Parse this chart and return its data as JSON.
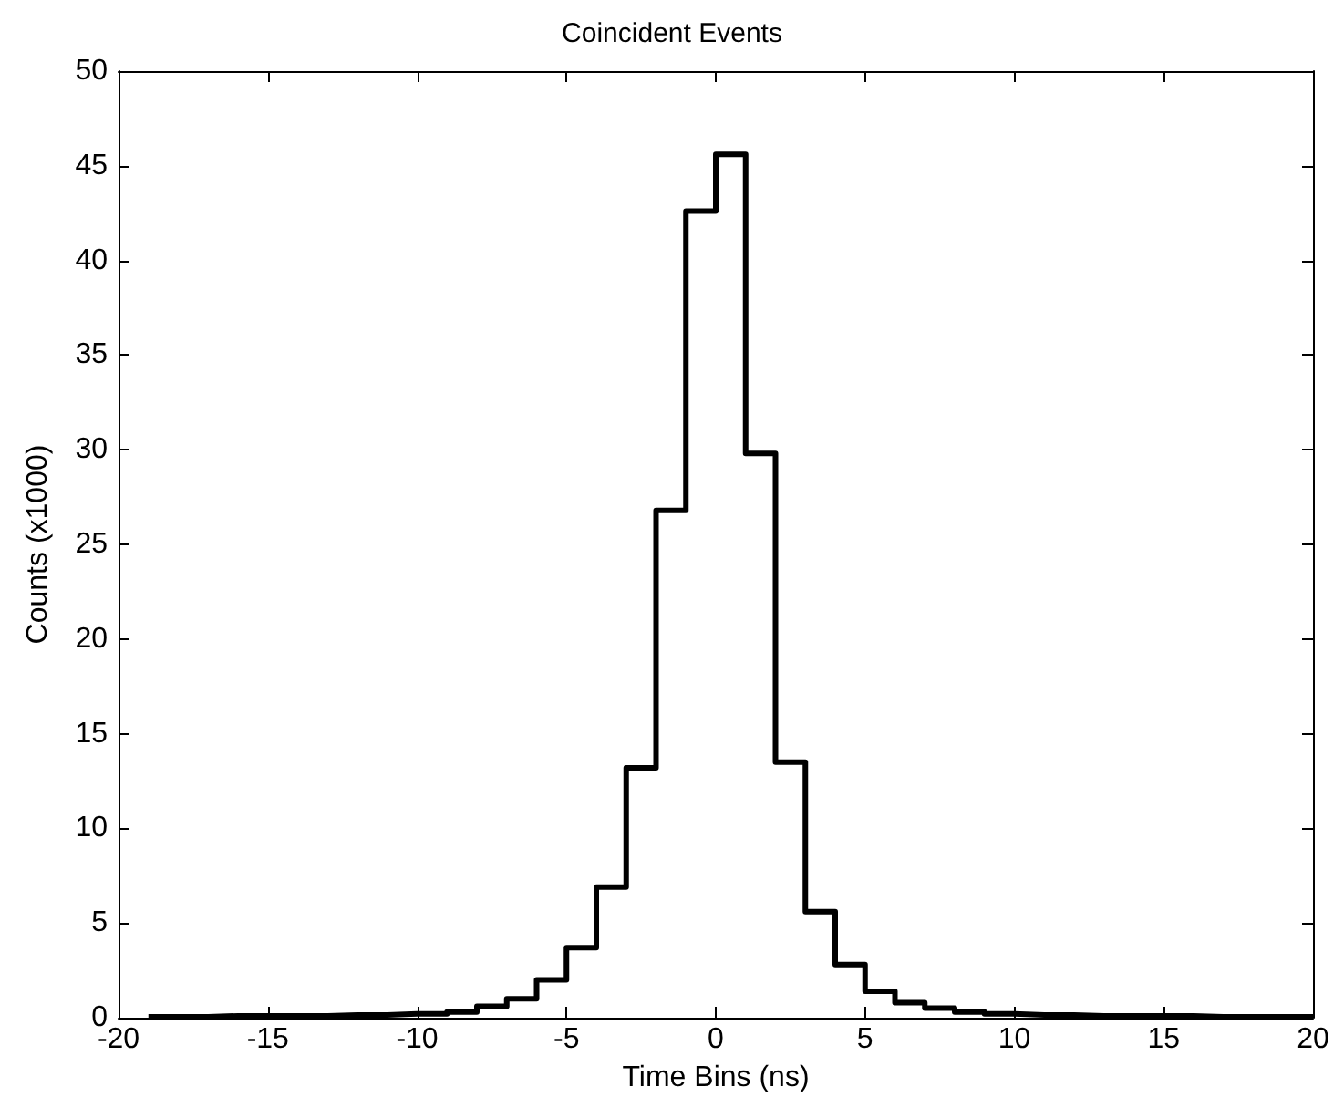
{
  "chart_data": {
    "type": "histogram",
    "title": "Coincident Events",
    "xlabel": "Time Bins (ns)",
    "ylabel": "Counts (x1000)",
    "bins": [
      -19,
      -18,
      -17,
      -16,
      -15,
      -14,
      -13,
      -12,
      -11,
      -10,
      -9,
      -8,
      -7,
      -6,
      -5,
      -4,
      -3,
      -2,
      -1,
      0,
      1,
      2,
      3,
      4,
      5,
      6,
      7,
      8,
      9,
      10,
      11,
      12,
      13,
      14,
      15,
      16,
      17,
      18,
      19,
      20
    ],
    "values": [
      0.05,
      0.05,
      0.1,
      0.1,
      0.1,
      0.1,
      0.15,
      0.15,
      0.2,
      0.2,
      0.3,
      0.6,
      1.0,
      2.0,
      3.7,
      6.9,
      13.2,
      26.8,
      42.6,
      45.6,
      29.8,
      13.5,
      5.6,
      2.8,
      1.4,
      0.8,
      0.5,
      0.3,
      0.2,
      0.15,
      0.15,
      0.1,
      0.1,
      0.1,
      0.1,
      0.05,
      0.05,
      0.05,
      0.05
    ],
    "color": "#000000",
    "xlim": [
      -20,
      20
    ],
    "ylim": [
      0,
      50
    ],
    "xticks": [
      -20,
      -15,
      -10,
      -5,
      0,
      5,
      10,
      15,
      20
    ],
    "yticks": [
      0,
      5,
      10,
      15,
      20,
      25,
      30,
      35,
      40,
      45,
      50
    ],
    "grid": false
  }
}
